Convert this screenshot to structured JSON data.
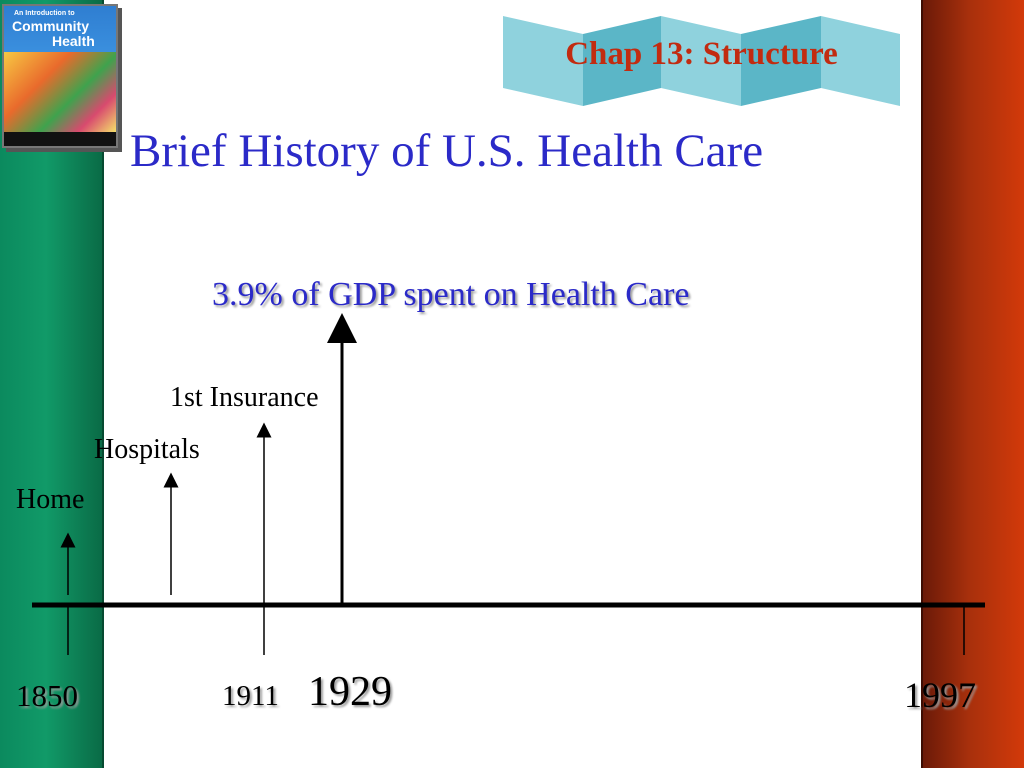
{
  "header": {
    "chapter": "Chap 13: Structure",
    "title": "Brief History of U.S. Health Care",
    "subtitle": "3.9% of GDP spent on Health Care"
  },
  "book_cover": {
    "line1": "An Introduction to",
    "line2": "Community",
    "line3": "Health"
  },
  "timeline": {
    "events": [
      {
        "label": "Home"
      },
      {
        "label": "Hospitals"
      },
      {
        "label": "1st Insurance"
      }
    ],
    "years": [
      "1850",
      "1911",
      "1929",
      "1997"
    ]
  },
  "colors": {
    "title": "#2b2ac8",
    "chapter": "#c22b10",
    "left_bar": "#0b8a5e",
    "right_bar": "#a8300c",
    "banner": "#6ec0cf"
  }
}
